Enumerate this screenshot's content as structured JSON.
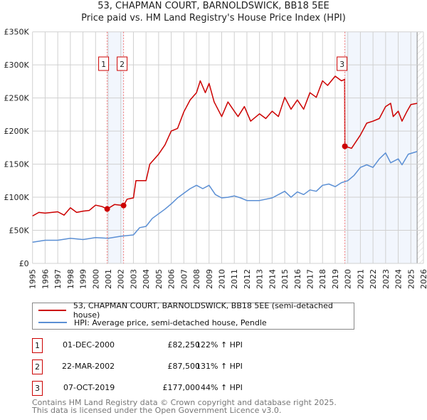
{
  "title": "53, CHAPMAN COURT, BARNOLDSWICK, BB18 5EE",
  "subtitle": "Price paid vs. HM Land Registry's House Price Index (HPI)",
  "chart_data": {
    "type": "line",
    "title": "53, CHAPMAN COURT, BARNOLDSWICK, BB18 5EE — Price paid vs. HM Land Registry's House Price Index (HPI)",
    "xlim": [
      1995,
      2026
    ],
    "ylim": [
      0,
      350000
    ],
    "grid": true,
    "x_ticks": [
      "1995",
      "1996",
      "1997",
      "1998",
      "1999",
      "2000",
      "2001",
      "2002",
      "2003",
      "2004",
      "2005",
      "2006",
      "2007",
      "2008",
      "2009",
      "2010",
      "2011",
      "2012",
      "2013",
      "2014",
      "2015",
      "2016",
      "2017",
      "2018",
      "2019",
      "2020",
      "2021",
      "2022",
      "2023",
      "2024",
      "2025",
      "2026"
    ],
    "y_ticks": [
      {
        "v": 0,
        "label": "£0"
      },
      {
        "v": 50000,
        "label": "£50K"
      },
      {
        "v": 100000,
        "label": "£100K"
      },
      {
        "v": 150000,
        "label": "£150K"
      },
      {
        "v": 200000,
        "label": "£200K"
      },
      {
        "v": 250000,
        "label": "£250K"
      },
      {
        "v": 300000,
        "label": "£300K"
      },
      {
        "v": 350000,
        "label": "£350K"
      }
    ],
    "series": [
      {
        "name": "53, CHAPMAN COURT, BARNOLDSWICK, BB18 5EE (semi-detached house)",
        "color": "#cc0000",
        "x": [
          1995,
          1995.5,
          1996,
          1997,
          1997.5,
          1998,
          1998.5,
          1999,
          1999.5,
          2000,
          2000.5,
          2000.92,
          2001.5,
          2002.22,
          2002.5,
          2003,
          2003.2,
          2004,
          2004.3,
          2005,
          2005.5,
          2006,
          2006.5,
          2007,
          2007.5,
          2008,
          2008.3,
          2008.7,
          2009,
          2009.4,
          2010,
          2010.5,
          2011,
          2011.3,
          2011.8,
          2012.3,
          2013,
          2013.5,
          2014,
          2014.5,
          2015,
          2015.5,
          2016,
          2016.5,
          2017,
          2017.5,
          2018,
          2018.4,
          2019,
          2019.5,
          2019.75,
          2019.77,
          2020.3,
          2021,
          2021.5,
          2022,
          2022.5,
          2023,
          2023.4,
          2023.6,
          2024,
          2024.3,
          2024.7,
          2025,
          2025.5
        ],
        "y": [
          71700,
          77000,
          76000,
          78000,
          73000,
          84000,
          77000,
          79000,
          80000,
          88000,
          86000,
          82250,
          89000,
          87500,
          97000,
          99000,
          125000,
          125000,
          150000,
          165000,
          179000,
          200000,
          204000,
          229000,
          247000,
          258000,
          276000,
          258000,
          272000,
          244000,
          222000,
          244000,
          230000,
          222000,
          237000,
          215000,
          226000,
          219000,
          230000,
          222000,
          251000,
          233000,
          247000,
          233000,
          258000,
          251000,
          276000,
          269000,
          283000,
          276000,
          278000,
          177000,
          174000,
          194000,
          212000,
          215000,
          219000,
          237000,
          242000,
          222000,
          230000,
          215000,
          230000,
          240000,
          242000
        ]
      },
      {
        "name": "HPI: Average price, semi-detached house, Pendle",
        "color": "#5b8fd4",
        "x": [
          1995,
          1996,
          1997,
          1998,
          1999,
          2000,
          2001,
          2002,
          2003,
          2003.5,
          2004,
          2004.5,
          2005,
          2005.5,
          2006,
          2006.5,
          2007,
          2007.5,
          2008,
          2008.5,
          2009,
          2009.5,
          2010,
          2010.5,
          2011,
          2011.5,
          2012,
          2013,
          2014,
          2015,
          2015.5,
          2016,
          2016.5,
          2017,
          2017.5,
          2018,
          2018.5,
          2019,
          2019.5,
          2020,
          2020.5,
          2021,
          2021.5,
          2022,
          2022.5,
          2023,
          2023.4,
          2024,
          2024.3,
          2024.8,
          2025.5
        ],
        "y": [
          32000,
          35000,
          35000,
          38000,
          36000,
          39000,
          38000,
          41000,
          43000,
          54000,
          56000,
          68000,
          75000,
          82000,
          90000,
          99000,
          106000,
          113000,
          118000,
          113000,
          118000,
          104000,
          99000,
          100000,
          102000,
          99000,
          95000,
          95000,
          99000,
          109000,
          100000,
          108000,
          104000,
          111000,
          109000,
          118000,
          120000,
          116000,
          122000,
          125000,
          133000,
          145000,
          149000,
          145000,
          158000,
          167000,
          152000,
          158000,
          149000,
          165000,
          169000
        ]
      }
    ],
    "sales": [
      {
        "label": "1",
        "x": 2000.92,
        "y": 82250
      },
      {
        "label": "2",
        "x": 2002.22,
        "y": 87500
      },
      {
        "label": "3",
        "x": 2019.77,
        "y": 177000
      }
    ],
    "shaded_ranges": [
      [
        2000.92,
        2002.22
      ],
      [
        2019.77,
        2025.5
      ]
    ],
    "forecast_hatch_from": 2025.5,
    "legend_placement": "below"
  },
  "legend": {
    "property": "53, CHAPMAN COURT, BARNOLDSWICK, BB18 5EE (semi-detached house)",
    "hpi": "HPI: Average price, semi-detached house, Pendle"
  },
  "transactions": [
    {
      "num": "1",
      "date": "01-DEC-2000",
      "price": "£82,250",
      "hpi": "122% ↑ HPI"
    },
    {
      "num": "2",
      "date": "22-MAR-2002",
      "price": "£87,500",
      "hpi": "131% ↑ HPI"
    },
    {
      "num": "3",
      "date": "07-OCT-2019",
      "price": "£177,000",
      "hpi": "44% ↑ HPI"
    }
  ],
  "footer": {
    "line1": "Contains HM Land Registry data © Crown copyright and database right 2025.",
    "line2": "This data is licensed under the Open Government Licence v3.0."
  }
}
